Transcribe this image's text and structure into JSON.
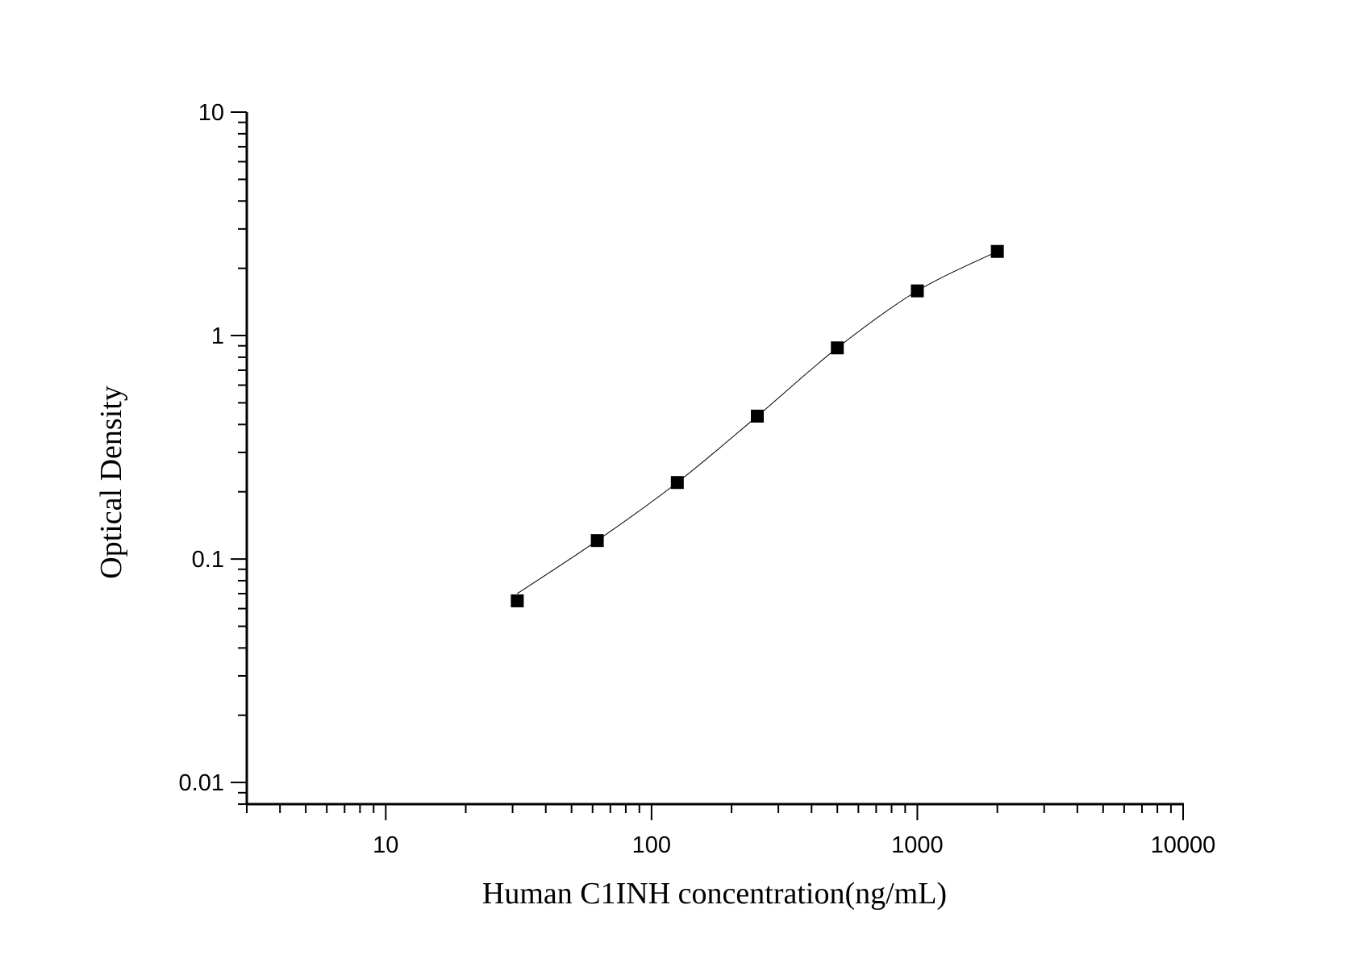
{
  "chart_data": {
    "type": "scatter",
    "xlabel": "Human C1INH concentration(ng/mL)",
    "ylabel": "Optical Density",
    "x_scale": "log",
    "y_scale": "log",
    "xlim": [
      3,
      10000
    ],
    "ylim": [
      0.008,
      10
    ],
    "x_ticks": [
      10,
      100,
      1000,
      10000
    ],
    "x_tick_labels": [
      "10",
      "100",
      "1000",
      "10000"
    ],
    "y_ticks": [
      0.01,
      0.1,
      1,
      10
    ],
    "y_tick_labels": [
      "0.01",
      "0.1",
      "1",
      "10"
    ],
    "grid": false,
    "marker": "square",
    "color": "#000000",
    "fit_line": true,
    "x": [
      31.25,
      62.5,
      125,
      250,
      500,
      1000,
      2000
    ],
    "y": [
      0.065,
      0.121,
      0.22,
      0.436,
      0.881,
      1.585,
      2.38
    ]
  }
}
